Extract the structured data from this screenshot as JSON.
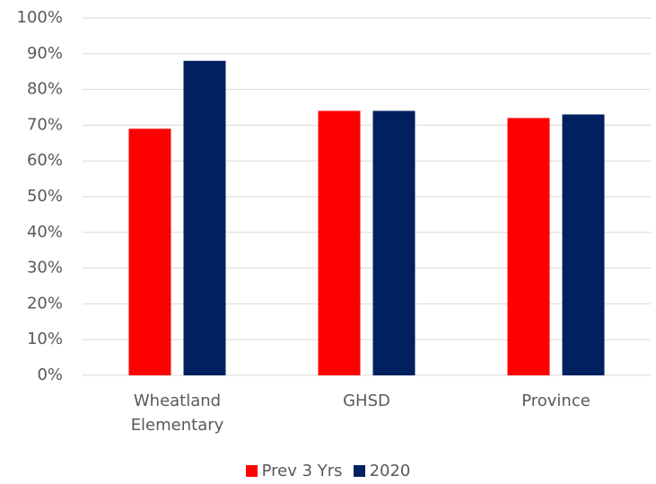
{
  "chart_data": {
    "type": "bar",
    "categories": [
      "Wheatland Elementary",
      "GHSD",
      "Province"
    ],
    "series": [
      {
        "name": "Prev 3 Yrs",
        "color": "#ff0000",
        "values": [
          69,
          74,
          72
        ]
      },
      {
        "name": "2020",
        "color": "#002060",
        "values": [
          88,
          74,
          73
        ]
      }
    ],
    "ylim": [
      0,
      100
    ],
    "yticks": [
      {
        "value": 0,
        "label": "0%"
      },
      {
        "value": 10,
        "label": "10%"
      },
      {
        "value": 20,
        "label": "20%"
      },
      {
        "value": 30,
        "label": "30%"
      },
      {
        "value": 40,
        "label": "40%"
      },
      {
        "value": 50,
        "label": "50%"
      },
      {
        "value": 60,
        "label": "60%"
      },
      {
        "value": 70,
        "label": "70%"
      },
      {
        "value": 80,
        "label": "80%"
      },
      {
        "value": 90,
        "label": "90%"
      },
      {
        "value": 100,
        "label": "100%"
      }
    ],
    "grid": true,
    "legend": "bottom"
  }
}
